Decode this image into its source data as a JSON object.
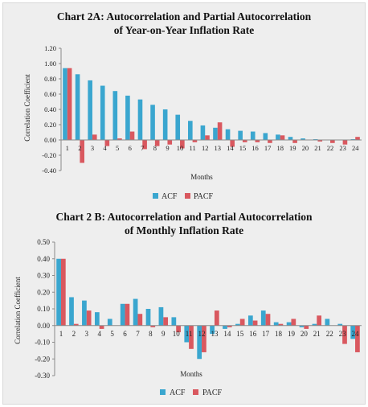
{
  "colors": {
    "acf": "#3aa6cf",
    "pacf": "#d9585f",
    "axis": "#8a8a8a",
    "background": "#eeeeee"
  },
  "chart_data": [
    {
      "type": "bar",
      "title": "Chart 2A: Autocorrelation and Partial Autocorrelation",
      "subtitle": "of Year-on-Year Inflation Rate",
      "xlabel": "Months",
      "ylabel": "Correlation Coefficient",
      "ylim": [
        -0.4,
        1.2
      ],
      "yticks": [
        "1.20",
        "1.00",
        "0.80",
        "0.60",
        "0.40",
        "0.20",
        "0.00",
        "-0.20",
        "-0.40"
      ],
      "ytick_values": [
        1.2,
        1.0,
        0.8,
        0.6,
        0.4,
        0.2,
        0.0,
        -0.2,
        -0.4
      ],
      "categories": [
        "1",
        "2",
        "3",
        "4",
        "5",
        "6",
        "7",
        "8",
        "9",
        "10",
        "11",
        "12",
        "13",
        "14",
        "15",
        "16",
        "17",
        "18",
        "19",
        "20",
        "21",
        "22",
        "23",
        "24"
      ],
      "legend_position": "bottom",
      "grid": false,
      "series": [
        {
          "name": "ACF",
          "values": [
            0.94,
            0.86,
            0.78,
            0.71,
            0.64,
            0.58,
            0.53,
            0.46,
            0.4,
            0.33,
            0.25,
            0.19,
            0.16,
            0.14,
            0.12,
            0.11,
            0.09,
            0.07,
            0.04,
            0.02,
            0.01,
            0.0,
            0.0,
            0.01
          ]
        },
        {
          "name": "PACF",
          "values": [
            0.94,
            -0.3,
            0.07,
            -0.08,
            0.02,
            0.11,
            -0.12,
            -0.08,
            -0.06,
            -0.11,
            -0.03,
            0.06,
            0.23,
            -0.09,
            -0.03,
            -0.03,
            -0.04,
            0.06,
            -0.04,
            0.0,
            -0.02,
            -0.04,
            -0.06,
            0.04
          ]
        }
      ]
    },
    {
      "type": "bar",
      "title": "Chart 2 B: Autocorrelation and Partial Autocorrelation",
      "subtitle": "of Monthly Inflation Rate",
      "xlabel": "Months",
      "ylabel": "Correlation Coefficient",
      "ylim": [
        -0.3,
        0.5
      ],
      "yticks": [
        "0.50",
        "0.40",
        "0.30",
        "0.20",
        "0.10",
        "0.00",
        "-0.10",
        "-0.20",
        "-0.30"
      ],
      "ytick_values": [
        0.5,
        0.4,
        0.3,
        0.2,
        0.1,
        0.0,
        -0.1,
        -0.2,
        -0.3
      ],
      "categories": [
        "1",
        "2",
        "3",
        "4",
        "5",
        "6",
        "7",
        "8",
        "9",
        "10",
        "11",
        "12",
        "13",
        "14",
        "15",
        "16",
        "17",
        "18",
        "19",
        "20",
        "21",
        "22",
        "23",
        "24"
      ],
      "legend_position": "bottom",
      "grid": false,
      "series": [
        {
          "name": "ACF",
          "values": [
            0.4,
            0.17,
            0.15,
            0.08,
            0.04,
            0.13,
            0.16,
            0.1,
            0.11,
            0.05,
            -0.1,
            -0.2,
            -0.05,
            -0.02,
            0.01,
            0.06,
            0.09,
            0.02,
            0.02,
            -0.01,
            0.01,
            0.04,
            0.01,
            -0.08
          ]
        },
        {
          "name": "PACF",
          "values": [
            0.4,
            0.01,
            0.09,
            -0.02,
            0.0,
            0.13,
            0.07,
            -0.01,
            0.05,
            -0.04,
            -0.14,
            -0.16,
            0.09,
            -0.01,
            0.04,
            0.03,
            0.07,
            0.01,
            0.04,
            -0.02,
            0.06,
            0.0,
            -0.11,
            -0.16
          ]
        }
      ]
    }
  ]
}
